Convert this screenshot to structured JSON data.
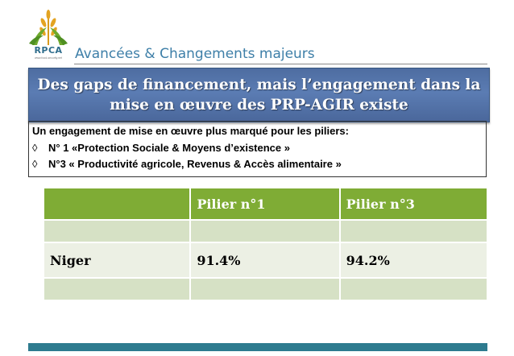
{
  "logo": {
    "text": "RPCA",
    "subtext": "www.food-security.net"
  },
  "header": {
    "title": "Avancées & Changements majeurs"
  },
  "banner": {
    "text": "Des gaps de financement, mais l’engagement dans la mise en œuvre  des PRP-AGIR existe"
  },
  "note": {
    "intro": "Un engagement de mise en œuvre plus marqué pour les piliers:",
    "items": [
      {
        "symbol": "◊",
        "text": "N° 1 «Protection Sociale & Moyens d’existence »"
      },
      {
        "symbol": "◊",
        "text": "N°3 « Productivité agricole, Revenus & Accès alimentaire »"
      }
    ]
  },
  "table": {
    "headers": [
      "",
      "Pilier n°1",
      "Pilier n°3"
    ],
    "rows": [
      [
        "",
        "",
        ""
      ],
      [
        "Niger",
        "91.4%",
        "94.2%"
      ],
      [
        "",
        "",
        ""
      ]
    ]
  },
  "colors": {
    "header_title": "#3e7fa8",
    "banner_bg": "#5372a8",
    "table_header": "#7fac35",
    "footer": "#2e7b8f"
  }
}
